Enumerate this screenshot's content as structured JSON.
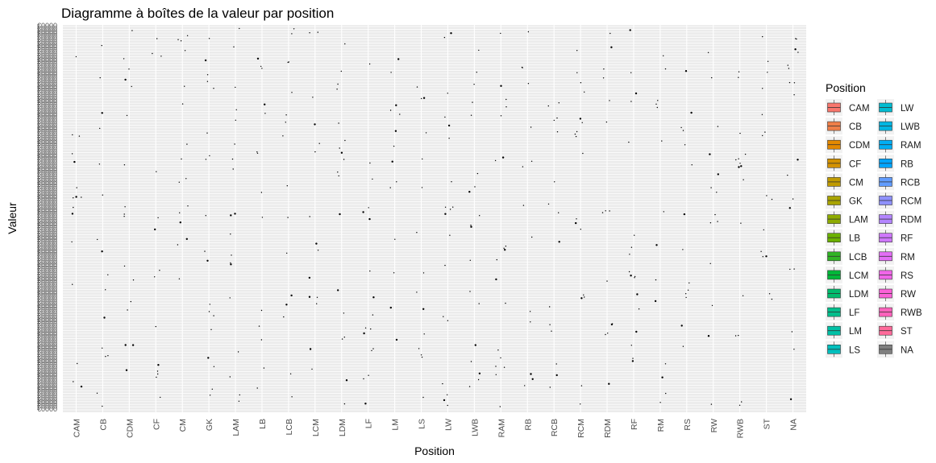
{
  "chart_data": {
    "type": "box",
    "title": "Diagramme à boîtes de la valeur par position",
    "xlabel": "Position",
    "ylabel": "Valeur",
    "categories": [
      "CAM",
      "CB",
      "CDM",
      "CF",
      "CM",
      "GK",
      "LAM",
      "LB",
      "LCB",
      "LCM",
      "LDM",
      "LF",
      "LM",
      "LS",
      "LW",
      "LWB",
      "RAM",
      "RB",
      "RCB",
      "RCM",
      "RDM",
      "RF",
      "RM",
      "RS",
      "RW",
      "RWB",
      "ST",
      "NA"
    ],
    "y_axis_note": "categorical axis with overlapping, illegible tick labels",
    "legend": {
      "title": "Position",
      "placement": "right",
      "columns": 2,
      "items": [
        {
          "label": "CAM",
          "color": "#F8766D"
        },
        {
          "label": "CB",
          "color": "#EF7F49"
        },
        {
          "label": "CDM",
          "color": "#E38900"
        },
        {
          "label": "CF",
          "color": "#D39200"
        },
        {
          "label": "CM",
          "color": "#C09B00"
        },
        {
          "label": "GK",
          "color": "#A9A400"
        },
        {
          "label": "LAM",
          "color": "#8EAB00"
        },
        {
          "label": "LB",
          "color": "#6BB100"
        },
        {
          "label": "LCB",
          "color": "#31B425"
        },
        {
          "label": "LCM",
          "color": "#00B83A"
        },
        {
          "label": "LDM",
          "color": "#00BC6E"
        },
        {
          "label": "LF",
          "color": "#00BF8C"
        },
        {
          "label": "LM",
          "color": "#00C0A6"
        },
        {
          "label": "LS",
          "color": "#00BFBD"
        },
        {
          "label": "LW",
          "color": "#00BCD1"
        },
        {
          "label": "LWB",
          "color": "#00B6E3"
        },
        {
          "label": "RAM",
          "color": "#00AEF4"
        },
        {
          "label": "RB",
          "color": "#00A5FF"
        },
        {
          "label": "RCB",
          "color": "#619CFF"
        },
        {
          "label": "RCM",
          "color": "#8F91FF"
        },
        {
          "label": "RDM",
          "color": "#B385FF"
        },
        {
          "label": "RF",
          "color": "#CF78FF"
        },
        {
          "label": "RM",
          "color": "#E36EF6"
        },
        {
          "label": "RS",
          "color": "#F166E8"
        },
        {
          "label": "RW",
          "color": "#FA62D7"
        },
        {
          "label": "RWB",
          "color": "#FF62BC"
        },
        {
          "label": "ST",
          "color": "#FF6A9A"
        },
        {
          "label": "NA",
          "color": "#7F7F7F"
        }
      ]
    },
    "colors": {
      "panel": "#EBEBEB",
      "grid": "#FFFFFF",
      "points": "#000000"
    }
  }
}
